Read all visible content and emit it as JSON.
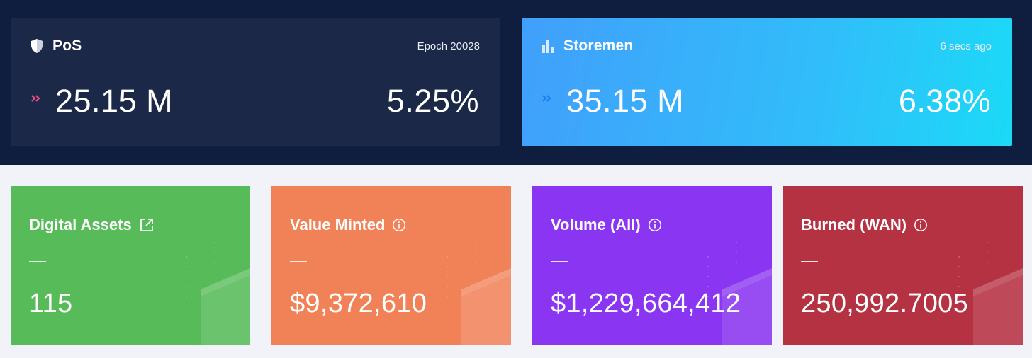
{
  "pos": {
    "title": "PoS",
    "epoch": "Epoch 20028",
    "value": "25.15 M",
    "percent": "5.25%"
  },
  "storemen": {
    "title": "Storemen",
    "updated": "6 secs ago",
    "value": "35.15 M",
    "percent": "6.38%"
  },
  "cards": [
    {
      "title": "Digital Assets",
      "dash": "—",
      "value": "115",
      "color": "#57bb5a",
      "icon": "external-link-icon"
    },
    {
      "title": "Value Minted",
      "dash": "—",
      "value": "$9,372,610",
      "color": "#f18157",
      "icon": "info-icon"
    },
    {
      "title": "Volume (All)",
      "dash": "—",
      "value": "$1,229,664,412",
      "color": "#8a35f1",
      "icon": "info-icon"
    },
    {
      "title": "Burned (WAN)",
      "dash": "—",
      "value": "250,992.7005",
      "color": "#b53242",
      "icon": "info-icon"
    }
  ]
}
